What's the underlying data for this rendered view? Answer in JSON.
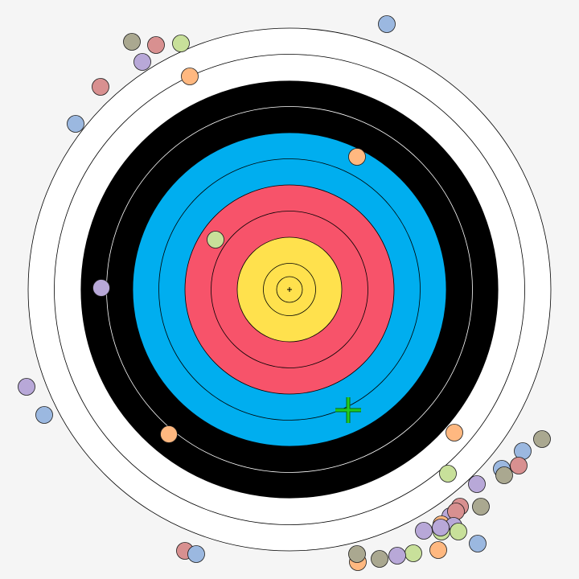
{
  "game": {
    "type": "archery-target",
    "background": "#f5f5f5",
    "target": {
      "rings": [
        {
          "ring": 1,
          "color": "#ffffff",
          "score": 1
        },
        {
          "ring": 2,
          "color": "#ffffff",
          "score": 2
        },
        {
          "ring": 3,
          "color": "#000000",
          "score": 3
        },
        {
          "ring": 4,
          "color": "#000000",
          "score": 4
        },
        {
          "ring": 5,
          "color": "#00aeef",
          "score": 5
        },
        {
          "ring": 6,
          "color": "#00aeef",
          "score": 6
        },
        {
          "ring": 7,
          "color": "#f7536a",
          "score": 7
        },
        {
          "ring": 8,
          "color": "#f7536a",
          "score": 8
        },
        {
          "ring": 9,
          "color": "#ffe14d",
          "score": 9
        },
        {
          "ring": 10,
          "color": "#ffe14d",
          "score": 10
        }
      ],
      "inner_ten_color": "#ffe14d",
      "center_mark": "+"
    },
    "aim_reticle": {
      "icon": "crosshair-icon",
      "color": "#22cc22"
    },
    "arrow_palette": {
      "blue": "#9bb8e0",
      "pink": "#d89090",
      "olive": "#aaa890",
      "green": "#c8e09a",
      "purple": "#b8a8d8",
      "orange": "#ffb880"
    }
  }
}
